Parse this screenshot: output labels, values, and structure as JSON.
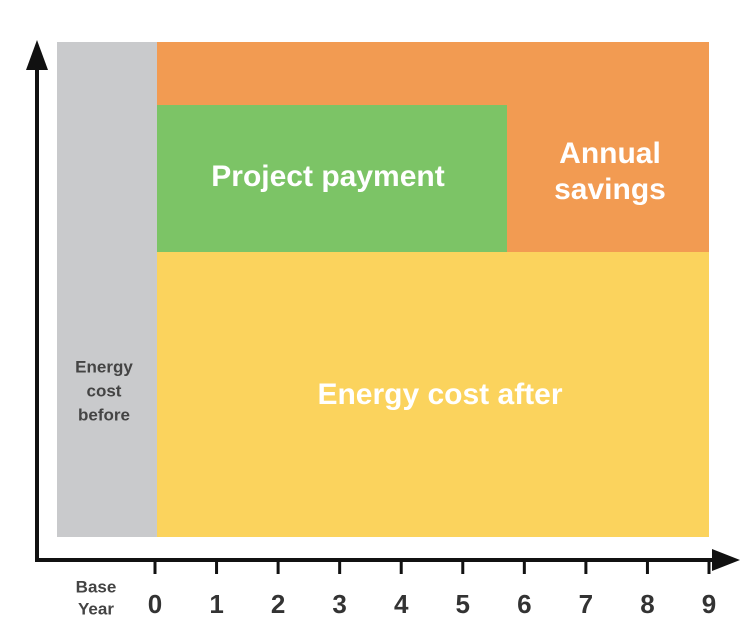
{
  "regions": {
    "before": {
      "lines": [
        "Energy",
        "cost",
        "before"
      ]
    },
    "payment": {
      "label": "Project payment"
    },
    "savings": {
      "lines": [
        "Annual",
        "savings"
      ]
    },
    "after": {
      "label": "Energy cost after"
    }
  },
  "axis": {
    "base_label": [
      "Base",
      "Year"
    ],
    "ticks": [
      0,
      1,
      2,
      3,
      4,
      5,
      6,
      7,
      8,
      9
    ]
  }
}
